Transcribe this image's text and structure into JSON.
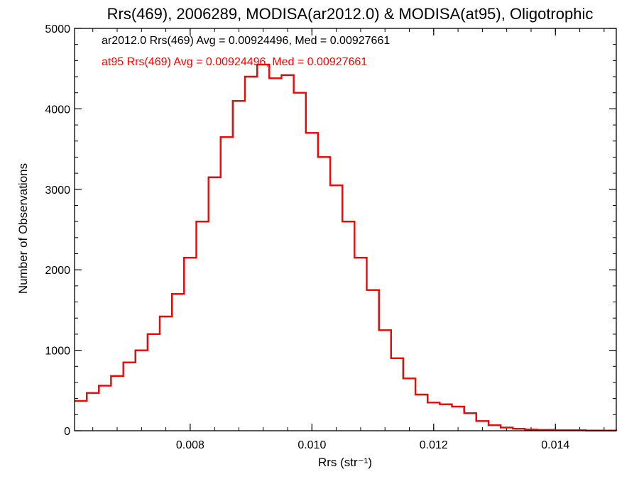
{
  "chart_data": {
    "type": "line",
    "title": "Rrs(469), 2006289, MODISA(ar2012.0) & MODISA(at95), Oligotrophic",
    "xlabel": "Rrs (str⁻¹)",
    "ylabel": "Number of Observations",
    "xlim": [
      0.0061,
      0.015
    ],
    "ylim": [
      0,
      5000
    ],
    "x_ticks": [
      0.008,
      0.01,
      0.012,
      0.014
    ],
    "x_tick_labels": [
      "0.008",
      "0.010",
      "0.012",
      "0.014"
    ],
    "y_ticks": [
      0,
      1000,
      2000,
      3000,
      4000,
      5000
    ],
    "y_tick_labels": [
      "0",
      "1000",
      "2000",
      "3000",
      "4000",
      "5000"
    ],
    "grid": false,
    "annotations": [
      {
        "text": "ar2012.0 Rrs(469) Avg = 0.00924496, Med = 0.00927661",
        "color": "#000000"
      },
      {
        "text": "at95 Rrs(469) Avg = 0.00924496, Med = 0.00927661",
        "color": "#ff0000"
      }
    ],
    "series": [
      {
        "name": "ar2012.0",
        "color": "#000000",
        "x": [
          0.0061,
          0.0063,
          0.0065,
          0.0067,
          0.0069,
          0.0071,
          0.0073,
          0.0075,
          0.0077,
          0.0079,
          0.0081,
          0.0083,
          0.0085,
          0.0087,
          0.0089,
          0.0091,
          0.0093,
          0.0095,
          0.0097,
          0.0099,
          0.0101,
          0.0103,
          0.0105,
          0.0107,
          0.0109,
          0.0111,
          0.0113,
          0.0115,
          0.0117,
          0.0119,
          0.0121,
          0.0123,
          0.0125,
          0.0127,
          0.0129,
          0.0131,
          0.0133,
          0.0135,
          0.0137,
          0.014,
          0.0145,
          0.015
        ],
        "y": [
          370,
          470,
          560,
          680,
          850,
          1000,
          1200,
          1420,
          1700,
          2150,
          2600,
          3150,
          3650,
          4100,
          4400,
          4550,
          4380,
          4420,
          4200,
          3700,
          3400,
          3050,
          2600,
          2150,
          1750,
          1250,
          900,
          650,
          450,
          350,
          330,
          300,
          220,
          120,
          70,
          40,
          25,
          15,
          10,
          5,
          3,
          1
        ]
      },
      {
        "name": "at95",
        "color": "#ff0000",
        "x": [
          0.0061,
          0.0063,
          0.0065,
          0.0067,
          0.0069,
          0.0071,
          0.0073,
          0.0075,
          0.0077,
          0.0079,
          0.0081,
          0.0083,
          0.0085,
          0.0087,
          0.0089,
          0.0091,
          0.0093,
          0.0095,
          0.0097,
          0.0099,
          0.0101,
          0.0103,
          0.0105,
          0.0107,
          0.0109,
          0.0111,
          0.0113,
          0.0115,
          0.0117,
          0.0119,
          0.0121,
          0.0123,
          0.0125,
          0.0127,
          0.0129,
          0.0131,
          0.0133,
          0.0135,
          0.0137,
          0.014,
          0.0145,
          0.015
        ],
        "y": [
          370,
          470,
          560,
          680,
          850,
          1000,
          1200,
          1420,
          1700,
          2150,
          2600,
          3150,
          3650,
          4100,
          4400,
          4550,
          4380,
          4420,
          4200,
          3700,
          3400,
          3050,
          2600,
          2150,
          1750,
          1250,
          900,
          650,
          450,
          350,
          330,
          300,
          220,
          120,
          70,
          40,
          25,
          15,
          10,
          5,
          3,
          1
        ]
      }
    ]
  }
}
